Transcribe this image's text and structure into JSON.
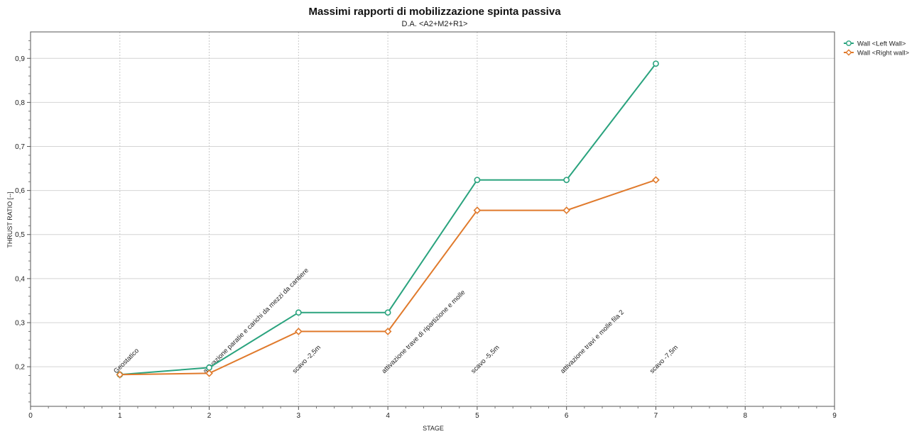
{
  "chart_data": {
    "type": "line",
    "title": "Massimi rapporti di mobilizzazione spinta passiva",
    "subtitle": "D.A. <A2+M2+R1>",
    "xlabel": "STAGE",
    "ylabel": "THRUST RATIO [--]",
    "xlim": [
      0,
      9
    ],
    "ylim": [
      0.11,
      0.96
    ],
    "xticks": [
      0,
      1,
      2,
      3,
      4,
      5,
      6,
      7,
      8,
      9
    ],
    "yticks": [
      0.2,
      0.3,
      0.4,
      0.5,
      0.6,
      0.7,
      0.8,
      0.9
    ],
    "ytick_labels": [
      "0,2",
      "0,3",
      "0,4",
      "0,5",
      "0,6",
      "0,7",
      "0,8",
      "0,9"
    ],
    "grid": true,
    "legend_position": "top-right",
    "x": [
      1,
      2,
      3,
      4,
      5,
      6,
      7
    ],
    "series": [
      {
        "name": "Wall <Left Wall>",
        "color": "#2aa37e",
        "marker": "circle",
        "values": [
          0.182,
          0.198,
          0.323,
          0.323,
          0.624,
          0.624,
          0.888
        ]
      },
      {
        "name": "Wall <Right wall>",
        "color": "#e07a2c",
        "marker": "diamond",
        "values": [
          0.182,
          0.185,
          0.28,
          0.28,
          0.555,
          0.555,
          0.624
        ]
      }
    ],
    "annotations": [
      {
        "x": 1,
        "text": "Geostatico"
      },
      {
        "x": 2,
        "text": "attivazione paratie e carichi da mezzi da cantiere"
      },
      {
        "x": 3,
        "text": "scavo -2,5m"
      },
      {
        "x": 4,
        "text": "attivazione trave di ripartizione e molle"
      },
      {
        "x": 5,
        "text": "scavo -5,5m"
      },
      {
        "x": 6,
        "text": "attivazione travi e molle fila 2"
      },
      {
        "x": 7,
        "text": "scavo -7,5m"
      }
    ]
  }
}
